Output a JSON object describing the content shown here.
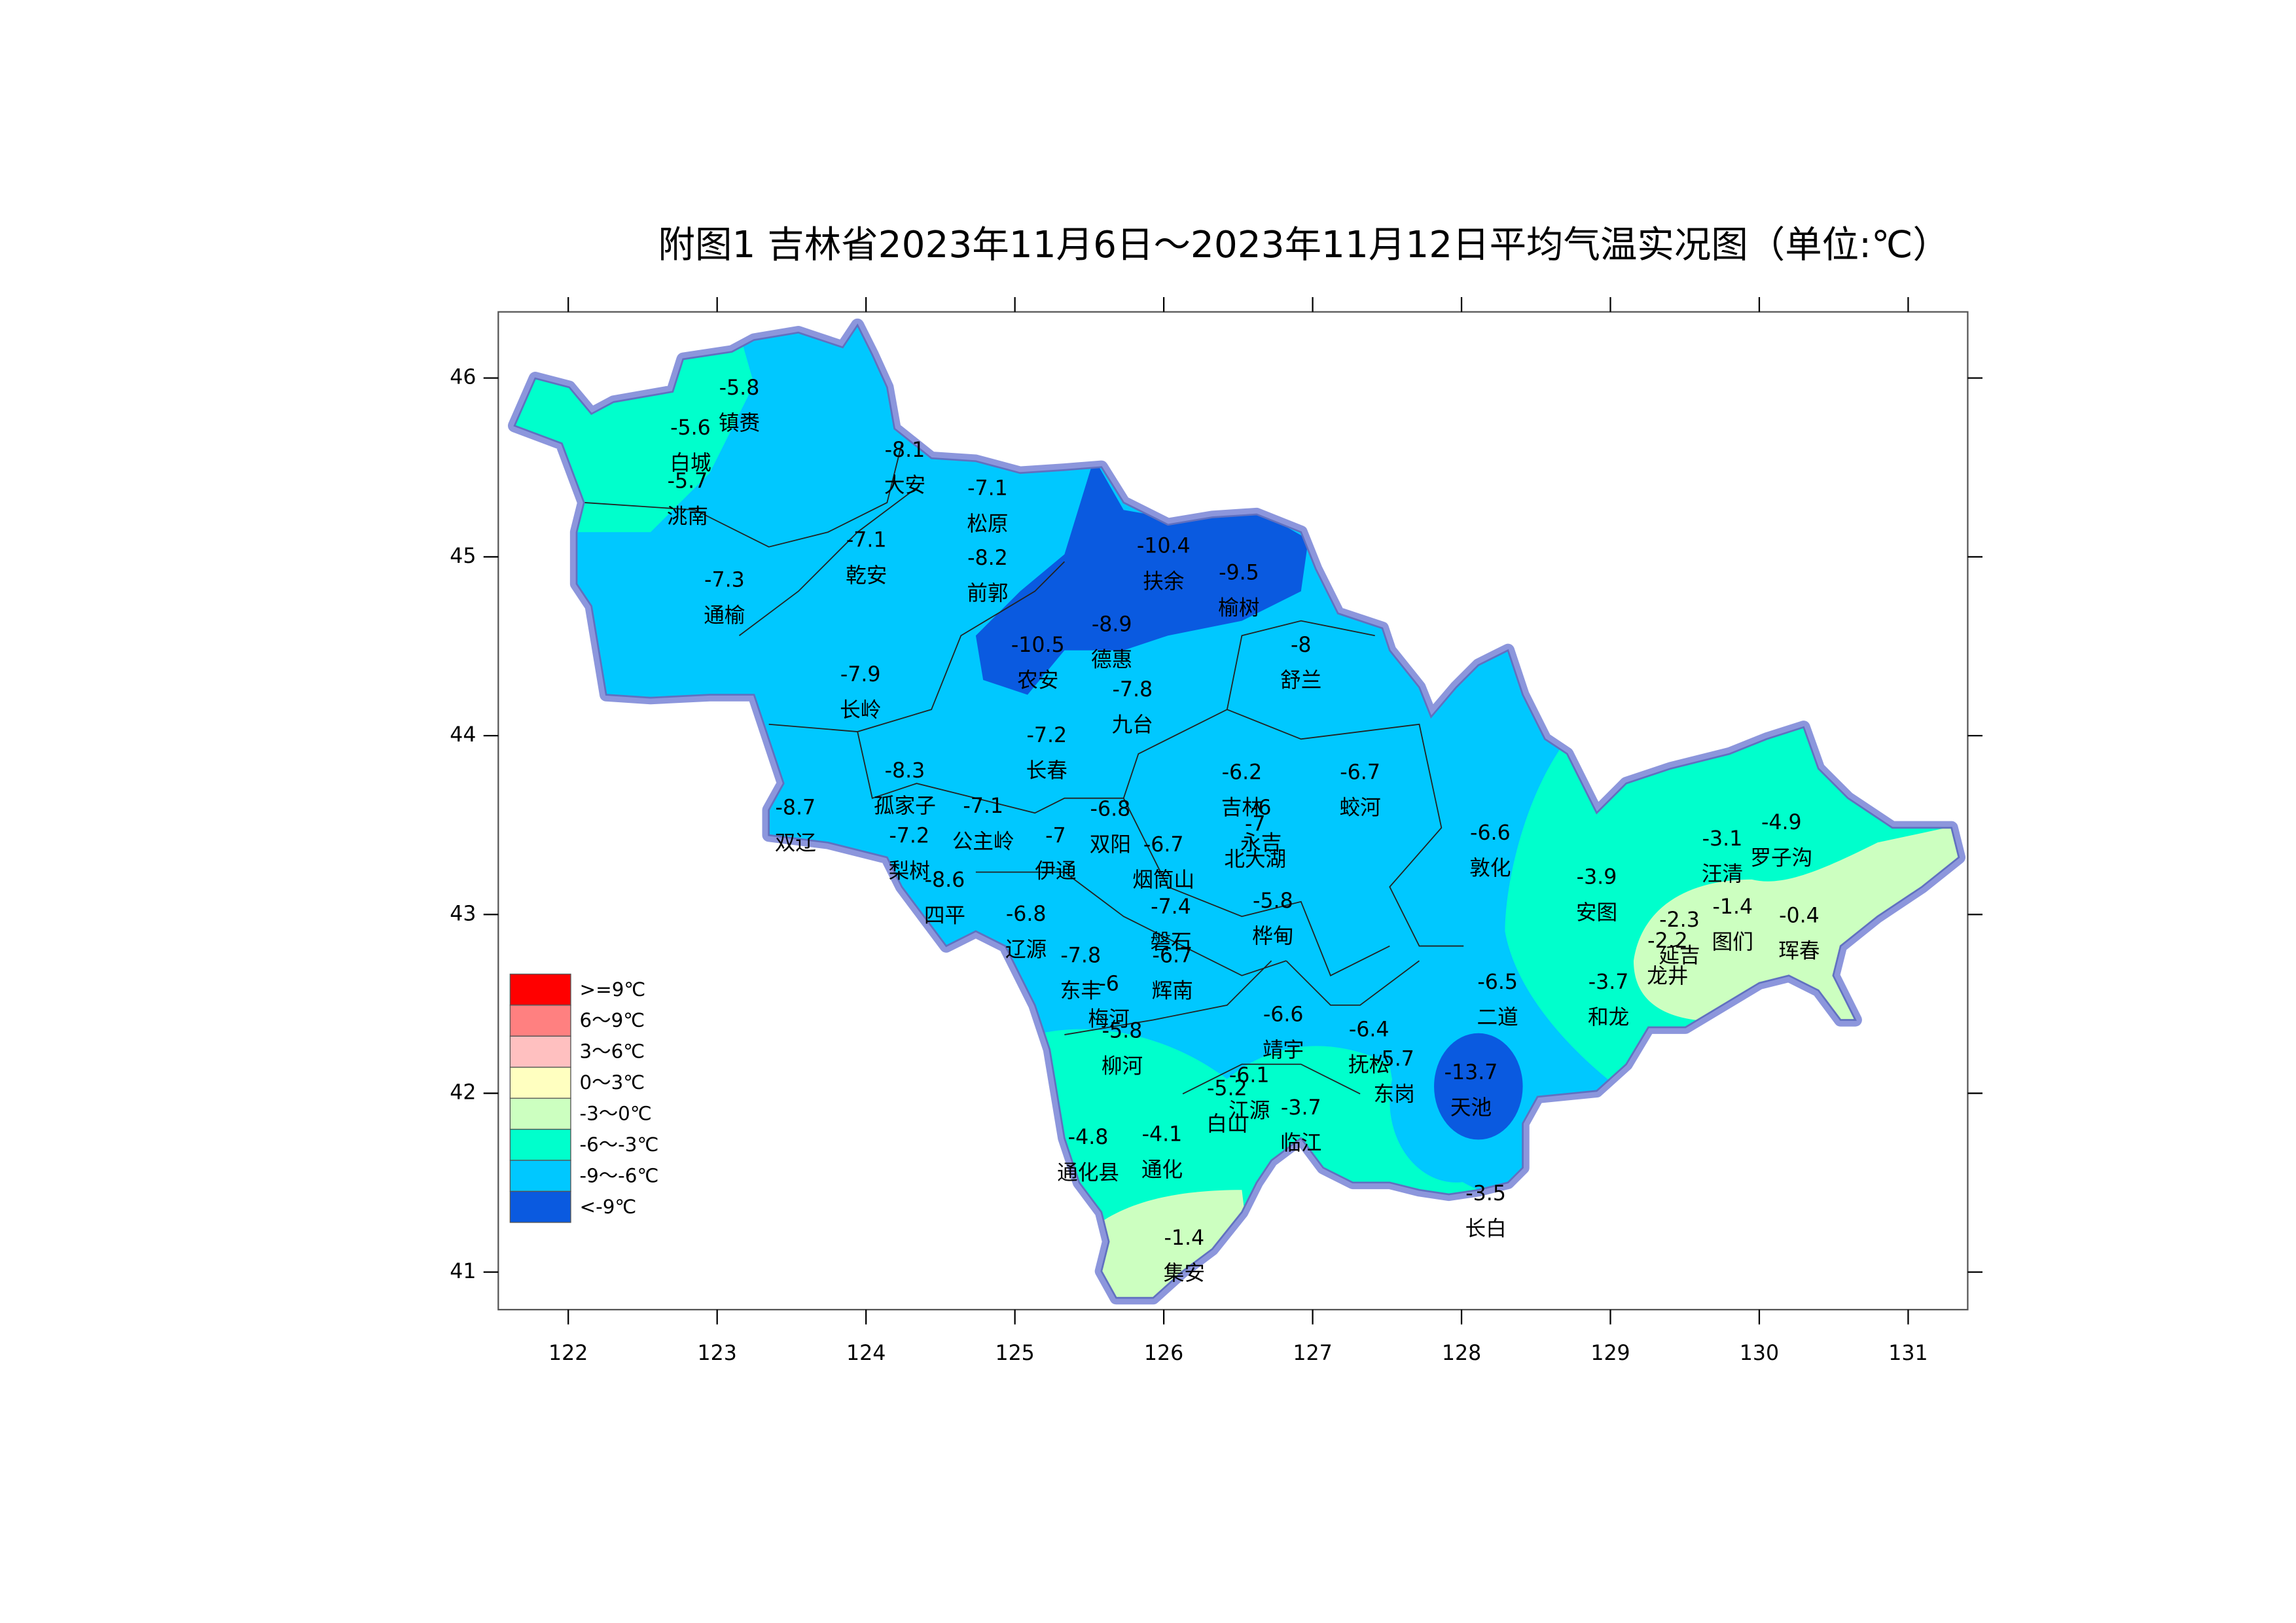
{
  "title": "附图1   吉林省2023年11月6日～2023年11月12日平均气温实况图（单位:℃）",
  "map": {
    "xlim": [
      121.53,
      131.4
    ],
    "ylim": [
      40.79,
      46.37
    ],
    "xticks": [
      122,
      123,
      124,
      125,
      126,
      127,
      128,
      129,
      130,
      131
    ],
    "yticks": [
      41,
      42,
      43,
      44,
      45,
      46
    ]
  },
  "legend": [
    {
      "label": ">=9℃",
      "color": "#ff0000"
    },
    {
      "label": "6～9℃",
      "color": "#ff8080"
    },
    {
      "label": "3～6℃",
      "color": "#ffc0c0"
    },
    {
      "label": "0～3℃",
      "color": "#ffffc0"
    },
    {
      "label": "-3～0℃",
      "color": "#ccffc0"
    },
    {
      "label": "-6～-3℃",
      "color": "#00ffcc"
    },
    {
      "label": "-9～-6℃",
      "color": "#00c8ff"
    },
    {
      "label": "<-9℃",
      "color": "#0a5ae0"
    }
  ],
  "stations": [
    {
      "name": "镇赉",
      "value": -5.8
    },
    {
      "name": "白城",
      "value": -5.6
    },
    {
      "name": "洮南",
      "value": -5.7
    },
    {
      "name": "大安",
      "value": -8.1
    },
    {
      "name": "松原",
      "value": -7.1
    },
    {
      "name": "乾安",
      "value": -7.1
    },
    {
      "name": "前郭",
      "value": -8.2
    },
    {
      "name": "通榆",
      "value": -7.3
    },
    {
      "name": "扶余",
      "value": -10.4
    },
    {
      "name": "榆树",
      "value": -9.5
    },
    {
      "name": "德惠",
      "value": -8.9
    },
    {
      "name": "农安",
      "value": -10.5
    },
    {
      "name": "舒兰",
      "value": -8
    },
    {
      "name": "长岭",
      "value": -7.9
    },
    {
      "name": "九台",
      "value": -7.8
    },
    {
      "name": "长春",
      "value": -7.2
    },
    {
      "name": "孤家子",
      "value": -8.3
    },
    {
      "name": "吉林",
      "value": -6.2
    },
    {
      "name": "蛟河",
      "value": -6.7
    },
    {
      "name": "双辽",
      "value": -8.7
    },
    {
      "name": "公主岭",
      "value": -7.1
    },
    {
      "name": "伊通",
      "value": -7
    },
    {
      "name": "双阳",
      "value": -6.8
    },
    {
      "name": "永吉",
      "value": -6
    },
    {
      "name": "烟筒山",
      "value": -6.7
    },
    {
      "name": "北大湖",
      "value": -7
    },
    {
      "name": "梨树",
      "value": -7.2
    },
    {
      "name": "敦化",
      "value": -6.6
    },
    {
      "name": "汪清",
      "value": -3.1
    },
    {
      "name": "罗子沟",
      "value": -4.9
    },
    {
      "name": "安图",
      "value": -3.9
    },
    {
      "name": "四平",
      "value": -8.6
    },
    {
      "name": "磐石",
      "value": -7.4
    },
    {
      "name": "桦甸",
      "value": -5.8
    },
    {
      "name": "图们",
      "value": -1.4
    },
    {
      "name": "珲春",
      "value": -0.4
    },
    {
      "name": "延吉",
      "value": -2.3
    },
    {
      "name": "龙井",
      "value": -2.2
    },
    {
      "name": "辽源",
      "value": -6.8
    },
    {
      "name": "东丰",
      "value": -7.8
    },
    {
      "name": "辉南",
      "value": -6.7
    },
    {
      "name": "梅河",
      "value": -6
    },
    {
      "name": "二道",
      "value": -6.5
    },
    {
      "name": "和龙",
      "value": -3.7
    },
    {
      "name": "靖宇",
      "value": -6.6
    },
    {
      "name": "抚松",
      "value": -6.4
    },
    {
      "name": "柳河",
      "value": -5.8
    },
    {
      "name": "东岗",
      "value": -5.7
    },
    {
      "name": "天池",
      "value": -13.7
    },
    {
      "name": "江源",
      "value": -6.1
    },
    {
      "name": "白山",
      "value": -5.2
    },
    {
      "name": "临江",
      "value": -3.7
    },
    {
      "name": "通化县",
      "value": -4.8
    },
    {
      "name": "通化",
      "value": -4.1
    },
    {
      "name": "长白",
      "value": -3.5
    },
    {
      "name": "集安",
      "value": -1.4
    }
  ]
}
